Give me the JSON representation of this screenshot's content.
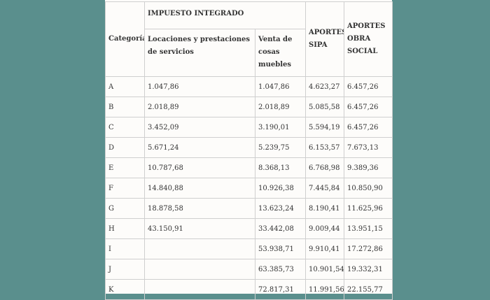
{
  "table": {
    "headers": {
      "categoria": "Categoría",
      "impuesto_integrado": "IMPUESTO INTEGRADO",
      "locaciones": "Locaciones y prestaciones de servicios",
      "venta": "Venta de cosas muebles",
      "aportes_sipa": "APORTES SIPA",
      "aportes_obra_social": "APORTES OBRA SOCIAL"
    },
    "rows": [
      {
        "cat": "A",
        "loc": "1.047,86",
        "venta": "1.047,86",
        "sipa": "4.623,27",
        "os": "6.457,26"
      },
      {
        "cat": "B",
        "loc": "2.018,89",
        "venta": "2.018,89",
        "sipa": "5.085,58",
        "os": "6.457,26"
      },
      {
        "cat": "C",
        "loc": "3.452,09",
        "venta": "3.190,01",
        "sipa": "5.594,19",
        "os": "6.457,26"
      },
      {
        "cat": "D",
        "loc": "5.671,24",
        "venta": "5.239,75",
        "sipa": "6.153,57",
        "os": "7.673,13"
      },
      {
        "cat": "E",
        "loc": "10.787,68",
        "venta": "8.368,13",
        "sipa": "6.768,98",
        "os": "9.389,36"
      },
      {
        "cat": "F",
        "loc": "14.840,88",
        "venta": "10.926,38",
        "sipa": "7.445,84",
        "os": "10.850,90"
      },
      {
        "cat": "G",
        "loc": "18.878,58",
        "venta": "13.623,24",
        "sipa": "8.190,41",
        "os": "11.625,96"
      },
      {
        "cat": "H",
        "loc": "43.150,91",
        "venta": "33.442,08",
        "sipa": "9.009,44",
        "os": "13.951,15"
      },
      {
        "cat": "I",
        "loc": "",
        "venta": "53.938,71",
        "sipa": "9.910,41",
        "os": "17.272,86"
      },
      {
        "cat": "J",
        "loc": "",
        "venta": "63.385,73",
        "sipa": "10.901,54",
        "os": "19.332,31"
      },
      {
        "cat": "K",
        "loc": "",
        "venta": "72.817,31",
        "sipa": "11.991,56",
        "os": "22.155,77"
      }
    ]
  }
}
